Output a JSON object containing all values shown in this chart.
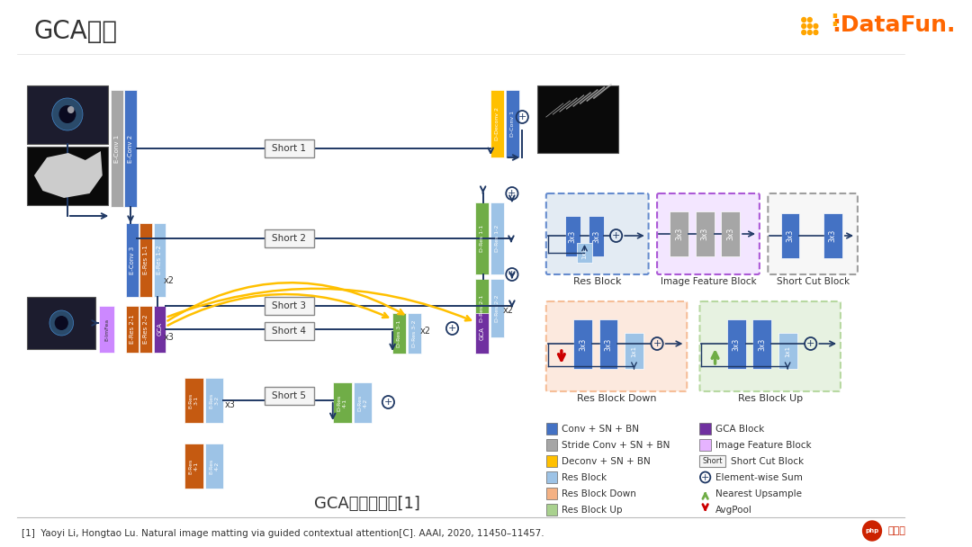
{
  "title": "GCA网络",
  "subtitle": "GCA网络示意图[1]",
  "reference": "[1]  Yaoyi Li, Hongtao Lu. Natural image matting via guided contextual attention[C]. AAAI, 2020, 11450–11457.",
  "bg_color": "#ffffff",
  "title_color": "#333333",
  "title_fontsize": 20,
  "enc_blue": "#4472c4",
  "enc_blue_light": "#9dc3e6",
  "orange": "#c55a11",
  "purple": "#7030a0",
  "purple_light": "#e6b3ff",
  "green": "#70ad47",
  "gray_block": "#a6a6a6",
  "yellow": "#ffc000",
  "line_color": "#1f3864",
  "legend_left": [
    {
      "label": "Conv + SN + BN",
      "color": "#4472c4"
    },
    {
      "label": "Stride Conv + SN + BN",
      "color": "#a6a6a6"
    },
    {
      "label": "Deconv + SN + BN",
      "color": "#ffc000"
    },
    {
      "label": "Res Block",
      "color": "#9dc3e6"
    },
    {
      "label": "Res Block Down",
      "color": "#f4b183"
    },
    {
      "label": "Res Block Up",
      "color": "#a9d18e"
    }
  ],
  "legend_right": [
    {
      "label": "GCA Block",
      "color": "#7030a0"
    },
    {
      "label": "Image Feature Block",
      "color": "#e6b3ff"
    },
    {
      "label": "Short Cut Block",
      "color": "#f2f2f2"
    },
    {
      "label": "Element-wise Sum",
      "color": "none"
    },
    {
      "label": "Nearest Upsample",
      "color": "none"
    },
    {
      "label": "AvgPool",
      "color": "none"
    }
  ]
}
